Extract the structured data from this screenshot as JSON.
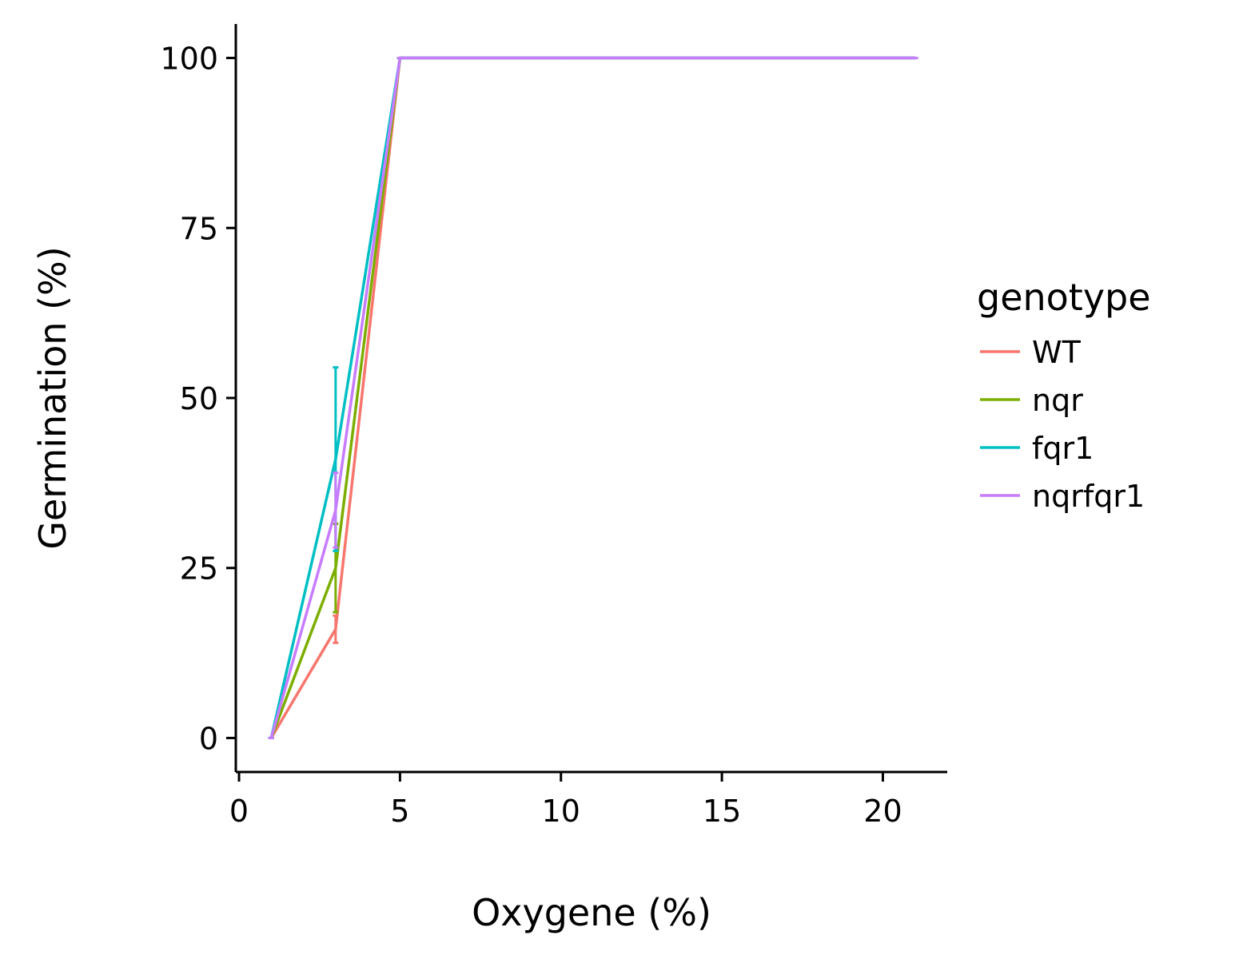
{
  "chart_data": {
    "type": "line",
    "title": "",
    "xlabel": "Oxygene (%)",
    "ylabel": "Germination (%)",
    "xlim": [
      -0.1,
      22
    ],
    "ylim": [
      -5,
      105
    ],
    "xticks": [
      0,
      5,
      10,
      15,
      20
    ],
    "yticks": [
      0,
      25,
      50,
      75,
      100
    ],
    "grid": false,
    "legend": {
      "title": "genotype",
      "position": "right"
    },
    "x": [
      1,
      3,
      5,
      10,
      21
    ],
    "series": [
      {
        "name": "WT",
        "color": "#F8766D",
        "values": [
          0,
          16,
          100,
          100,
          100
        ],
        "err": [
          0,
          2,
          0,
          0,
          0
        ]
      },
      {
        "name": "nqr",
        "color": "#7CAE00",
        "values": [
          0,
          25,
          100,
          100,
          100
        ],
        "err": [
          0,
          6.5,
          0,
          0,
          0
        ]
      },
      {
        "name": "fqr1",
        "color": "#00BFC4",
        "values": [
          0,
          41,
          100,
          100,
          100
        ],
        "err": [
          0,
          13.5,
          0,
          0,
          0
        ]
      },
      {
        "name": "nqrfqr1",
        "color": "#C77CFF",
        "values": [
          0,
          33.5,
          100,
          100,
          100
        ],
        "err": [
          0,
          5.5,
          0,
          0,
          0
        ]
      }
    ]
  }
}
